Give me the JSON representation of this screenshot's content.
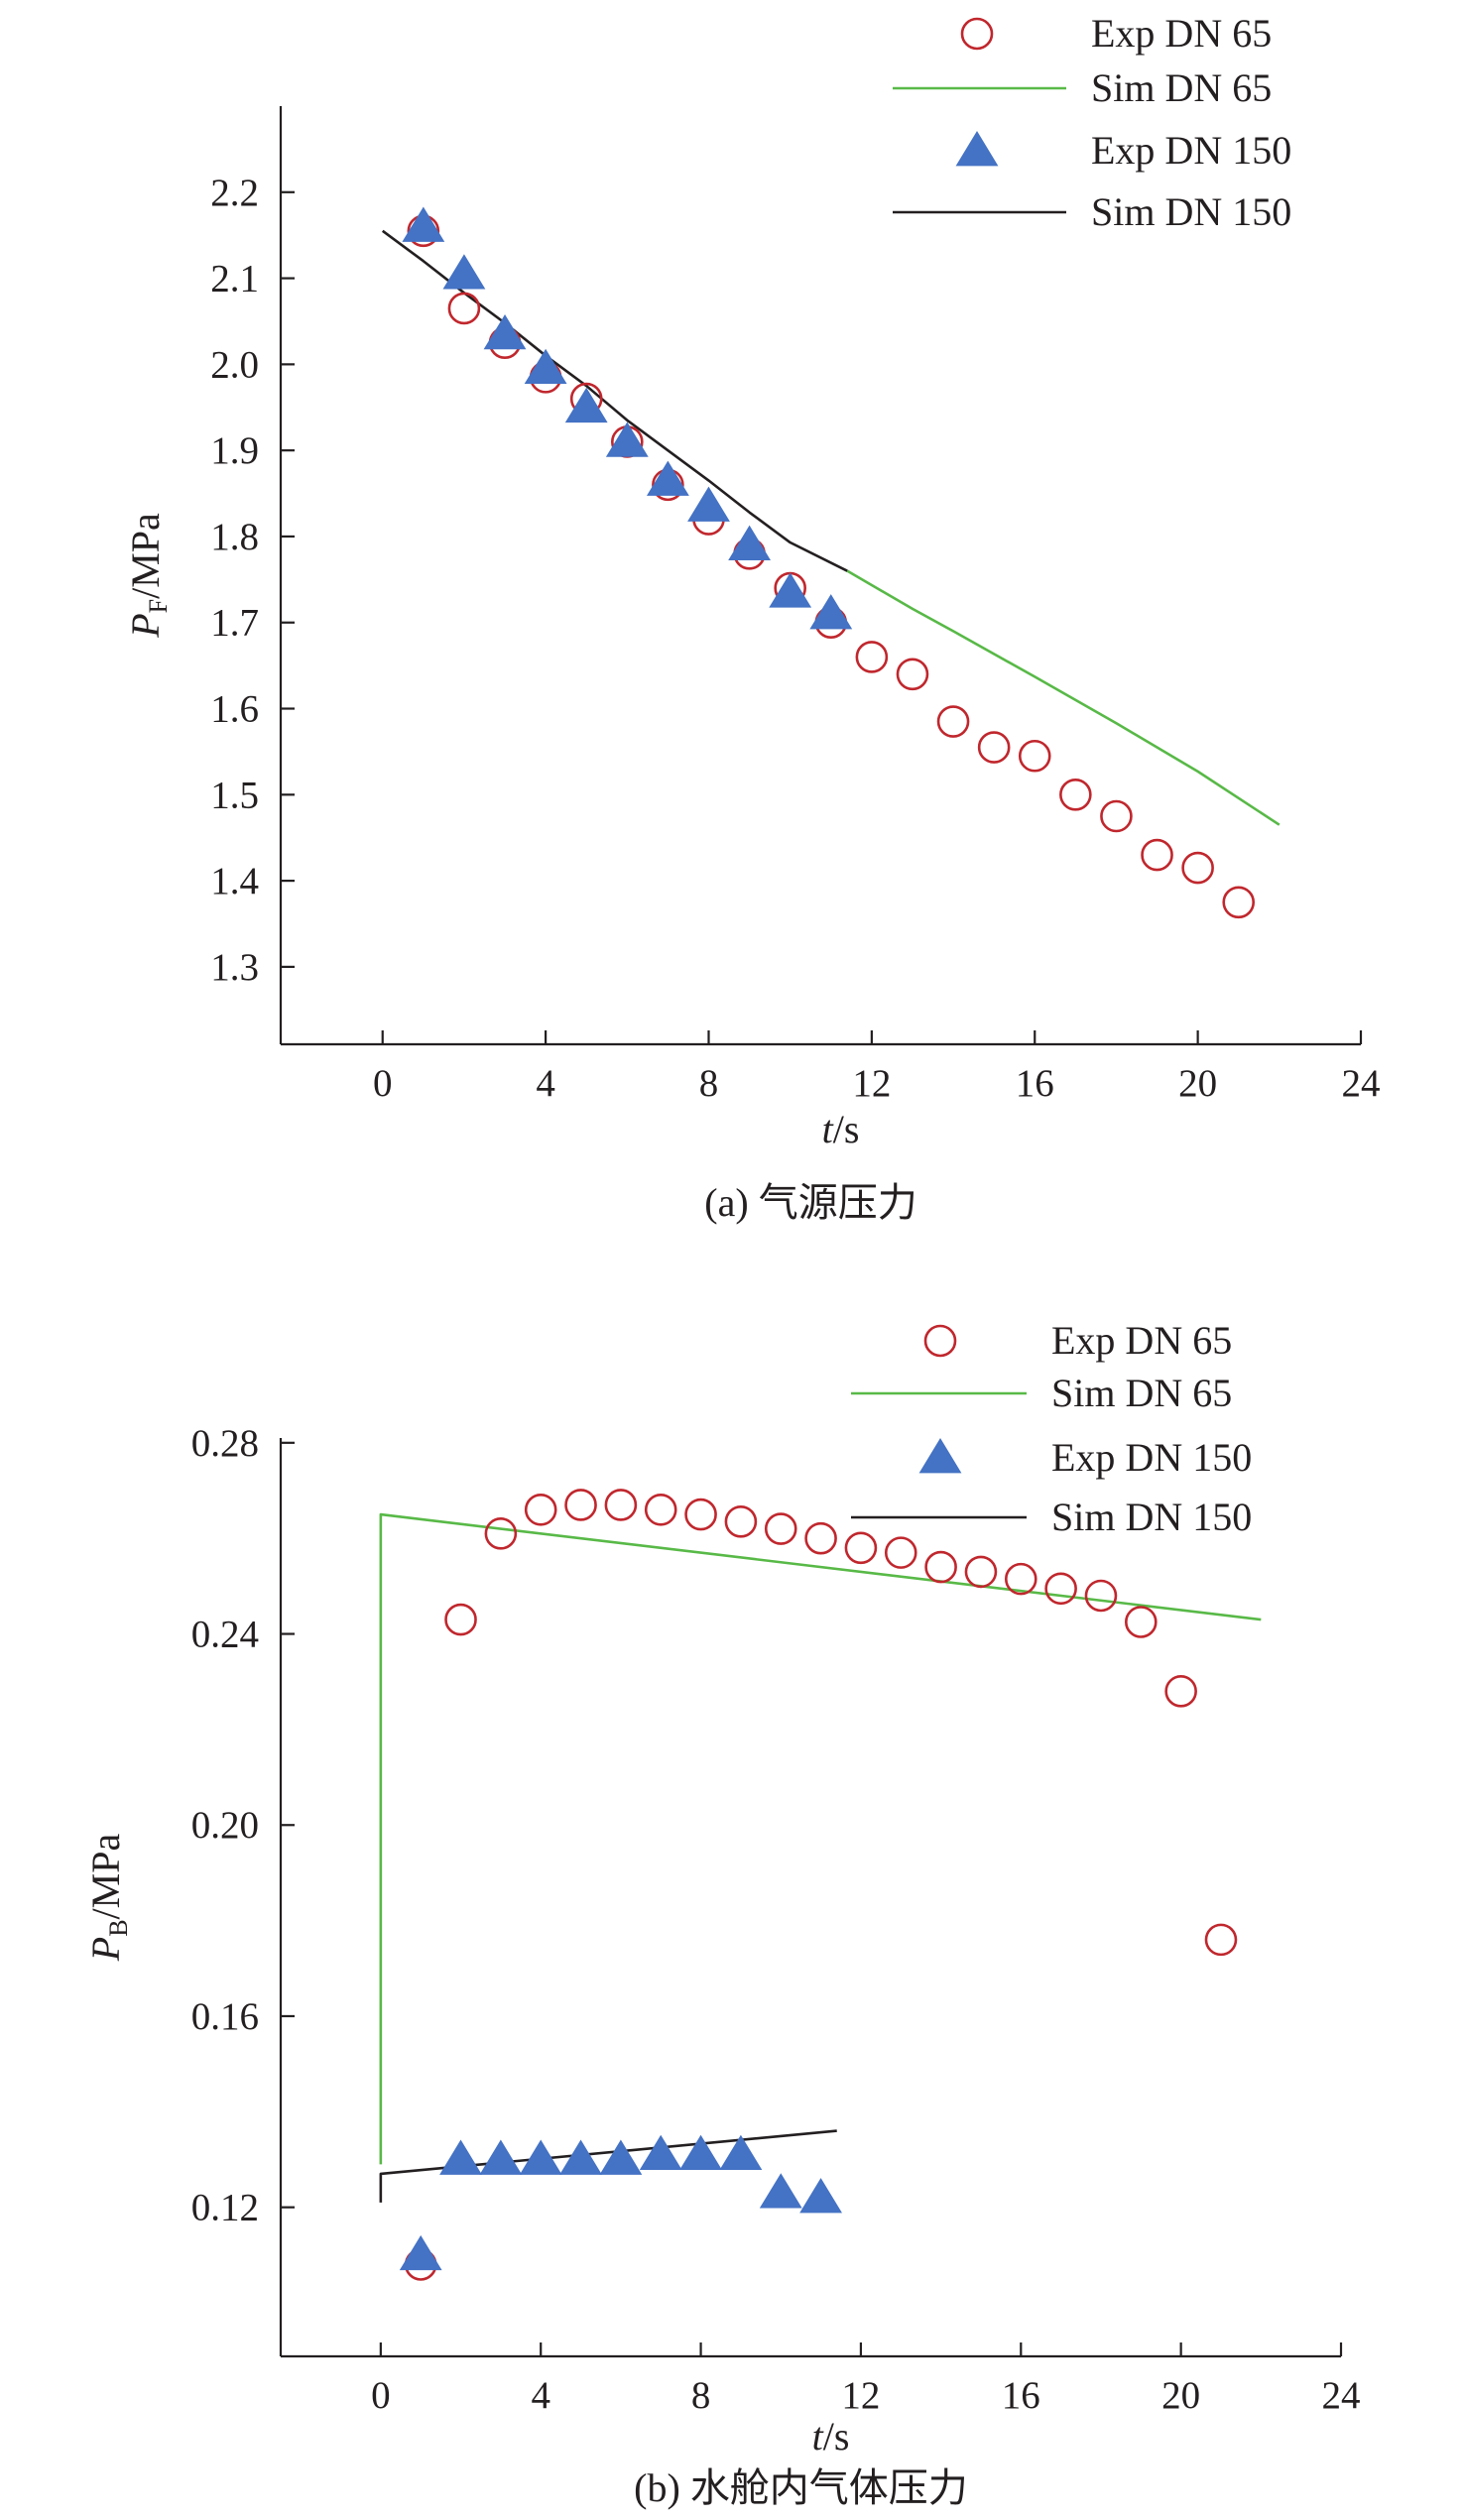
{
  "chart_data": [
    {
      "type": "scatter",
      "caption": "(a) 气源压力",
      "xlabel": {
        "var": "t",
        "unit": "/s"
      },
      "ylabel": {
        "var": "P",
        "sub": "F",
        "unit": "/MPa"
      },
      "xlim": [
        -2.5,
        24
      ],
      "ylim": [
        1.21,
        2.3
      ],
      "xticks": [
        "0",
        "4",
        "8",
        "12",
        "16",
        "20",
        "24"
      ],
      "yticks": [
        "1.3",
        "1.4",
        "1.5",
        "1.6",
        "1.7",
        "1.8",
        "1.9",
        "2.0",
        "2.1",
        "2.2"
      ],
      "grid": false,
      "legend_position": "top-right",
      "series": [
        {
          "name": "Exp DN 65",
          "kind": "scatter",
          "marker": "circle",
          "color": "#c0272d",
          "x": [
            1,
            2,
            3,
            4,
            5,
            6,
            7,
            8,
            9,
            10,
            11,
            12,
            13,
            14,
            15,
            16,
            17,
            18,
            19,
            20,
            21
          ],
          "y": [
            2.155,
            2.065,
            2.025,
            1.985,
            1.96,
            1.91,
            1.86,
            1.82,
            1.78,
            1.74,
            1.7,
            1.66,
            1.64,
            1.585,
            1.555,
            1.545,
            1.5,
            1.475,
            1.43,
            1.415,
            1.375
          ]
        },
        {
          "name": "Sim DN 65",
          "kind": "line",
          "color": "#58b947",
          "x": [
            11.4,
            13,
            14,
            16,
            18,
            20,
            22
          ],
          "y": [
            1.76,
            1.716,
            1.69,
            1.637,
            1.583,
            1.527,
            1.465
          ]
        },
        {
          "name": "Exp DN 150",
          "kind": "scatter",
          "marker": "triangle",
          "color": "#4472c4",
          "x": [
            1,
            2,
            3,
            4,
            5,
            6,
            7,
            8,
            9,
            10,
            11
          ],
          "y": [
            2.16,
            2.105,
            2.035,
            1.995,
            1.95,
            1.91,
            1.865,
            1.835,
            1.79,
            1.735,
            1.71
          ]
        },
        {
          "name": "Sim DN 150",
          "kind": "line",
          "color": "#231f20",
          "x": [
            0,
            1,
            2,
            3,
            4,
            5,
            6,
            7,
            8,
            9,
            10,
            11.4
          ],
          "y": [
            2.155,
            2.12,
            2.083,
            2.048,
            2.01,
            1.975,
            1.935,
            1.9,
            1.865,
            1.828,
            1.793,
            1.76
          ]
        }
      ]
    },
    {
      "type": "scatter",
      "caption": "(b) 水舱内气体压力",
      "xlabel": {
        "var": "t",
        "unit": "/s"
      },
      "ylabel": {
        "var": "P",
        "sub": "B",
        "unit": "/MPa"
      },
      "xlim": [
        -2.5,
        24
      ],
      "ylim": [
        0.0888,
        0.281
      ],
      "xticks": [
        "0",
        "4",
        "8",
        "12",
        "16",
        "20",
        "24"
      ],
      "yticks": [
        "0.12",
        "0.16",
        "0.20",
        "0.24",
        "0.28"
      ],
      "grid": false,
      "legend_position": "top-right",
      "series": [
        {
          "name": "Exp DN 65",
          "kind": "scatter",
          "marker": "circle",
          "color": "#c0272d",
          "x": [
            1,
            2,
            3,
            4,
            5,
            6,
            7,
            8,
            9,
            10,
            11,
            12,
            13,
            14,
            15,
            16,
            17,
            18,
            19,
            20,
            21
          ],
          "y": [
            0.108,
            0.243,
            0.261,
            0.266,
            0.267,
            0.267,
            0.266,
            0.265,
            0.2635,
            0.262,
            0.26,
            0.258,
            0.257,
            0.254,
            0.253,
            0.2515,
            0.2495,
            0.248,
            0.2425,
            0.228,
            0.176
          ]
        },
        {
          "name": "Sim DN 65",
          "kind": "line",
          "color": "#58b947",
          "x": [
            0,
            0,
            22
          ],
          "y": [
            0.129,
            0.265,
            0.243
          ]
        },
        {
          "name": "Exp DN 150",
          "kind": "scatter",
          "marker": "triangle",
          "color": "#4472c4",
          "x": [
            1,
            2,
            3,
            4,
            5,
            6,
            7,
            8,
            9,
            10,
            11
          ],
          "y": [
            0.11,
            0.13,
            0.13,
            0.13,
            0.13,
            0.13,
            0.131,
            0.131,
            0.131,
            0.123,
            0.122
          ]
        },
        {
          "name": "Sim DN 150",
          "kind": "line",
          "color": "#231f20",
          "x": [
            0,
            0,
            11.4
          ],
          "y": [
            0.121,
            0.127,
            0.136
          ]
        }
      ]
    }
  ]
}
